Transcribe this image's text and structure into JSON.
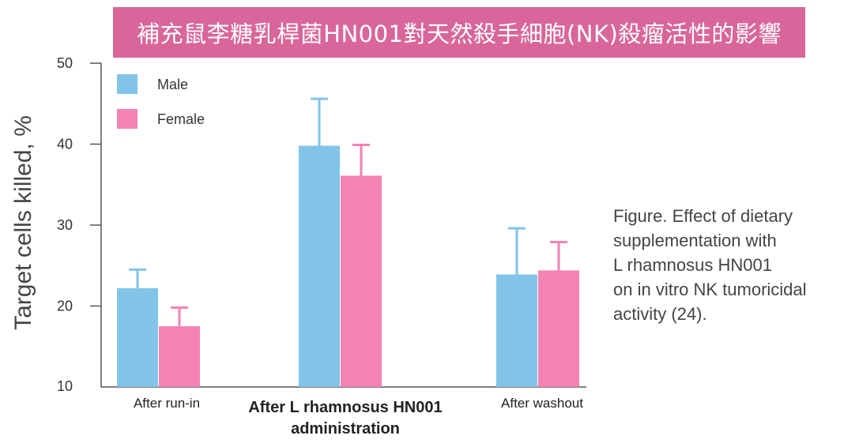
{
  "title": "補充鼠李糖乳桿菌HN001對天然殺手細胞(NK)殺瘤活性的影響",
  "caption_lines": [
    "Figure. Effect of dietary",
    "supplementation with",
    "L rhamnosus HN001",
    "on in vitro NK tumoricidal",
    "activity (24)."
  ],
  "colors": {
    "male": "#82c4e8",
    "female": "#f283b3",
    "banner": "#d9669a"
  },
  "chart_data": {
    "type": "bar",
    "ylabel": "Target cells killed, %",
    "ylim": [
      10,
      50
    ],
    "yticks": [
      10,
      20,
      30,
      40,
      50
    ],
    "categories": [
      "After run-in",
      "After L rhamnosus HN001 administration",
      "After washout"
    ],
    "category_label_lines": [
      [
        "After run-in"
      ],
      [
        "After L rhamnosus HN001",
        "administration"
      ],
      [
        "After washout"
      ]
    ],
    "series": [
      {
        "name": "Male",
        "values": [
          22.2,
          39.8,
          23.9
        ],
        "error_upper": [
          24.5,
          45.6,
          29.6
        ]
      },
      {
        "name": "Female",
        "values": [
          17.5,
          36.1,
          24.4
        ],
        "error_upper": [
          19.8,
          39.9,
          27.9
        ]
      }
    ],
    "legend": {
      "position": "top-left"
    },
    "grid": false
  }
}
